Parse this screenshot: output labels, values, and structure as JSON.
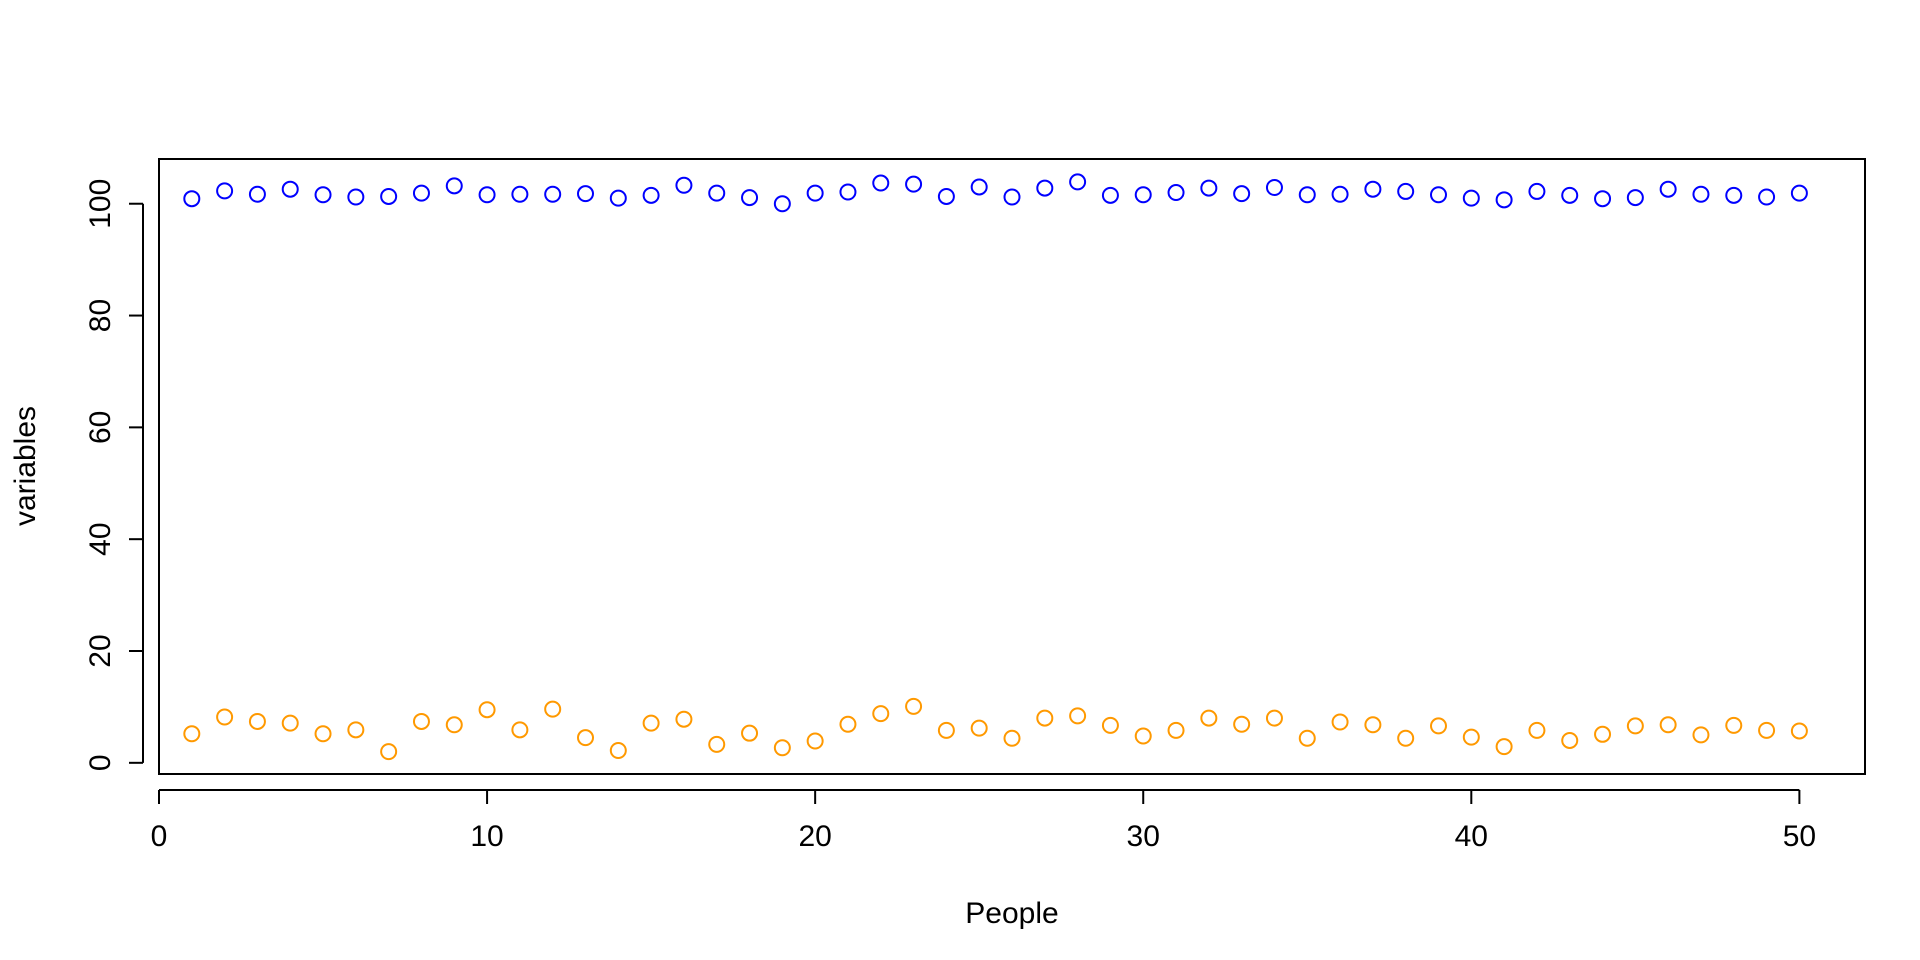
{
  "chart_data": {
    "type": "scatter",
    "title": "",
    "xlabel": "People",
    "ylabel": "variables",
    "xlim": [
      0,
      52
    ],
    "ylim": [
      -2,
      108
    ],
    "x_ticks": [
      0,
      10,
      20,
      30,
      40,
      50
    ],
    "y_ticks": [
      0,
      20,
      40,
      60,
      80,
      100
    ],
    "grid": false,
    "legend": "none",
    "marker": "open-circle",
    "series": [
      {
        "color": "#0000ff",
        "x": [
          1,
          2,
          3,
          4,
          5,
          6,
          7,
          8,
          9,
          10,
          11,
          12,
          13,
          14,
          15,
          16,
          17,
          18,
          19,
          20,
          21,
          22,
          23,
          24,
          25,
          26,
          27,
          28,
          29,
          30,
          31,
          32,
          33,
          34,
          35,
          36,
          37,
          38,
          39,
          40,
          41,
          42,
          43,
          44,
          45,
          46,
          47,
          48,
          49,
          50
        ],
        "y": [
          100.9,
          102.3,
          101.7,
          102.6,
          101.6,
          101.2,
          101.3,
          101.9,
          103.2,
          101.6,
          101.7,
          101.7,
          101.8,
          101.0,
          101.5,
          103.3,
          101.9,
          101.1,
          100.0,
          101.9,
          102.1,
          103.7,
          103.5,
          101.3,
          103.0,
          101.2,
          102.8,
          103.9,
          101.5,
          101.6,
          102.0,
          102.8,
          101.8,
          102.9,
          101.6,
          101.7,
          102.6,
          102.2,
          101.6,
          101.0,
          100.7,
          102.2,
          101.5,
          100.9,
          101.1,
          102.6,
          101.7,
          101.5,
          101.2,
          101.9
        ]
      },
      {
        "color": "#ff9900",
        "x": [
          1,
          2,
          3,
          4,
          5,
          6,
          7,
          8,
          9,
          10,
          11,
          12,
          13,
          14,
          15,
          16,
          17,
          18,
          19,
          20,
          21,
          22,
          23,
          24,
          25,
          26,
          27,
          28,
          29,
          30,
          31,
          32,
          33,
          34,
          35,
          36,
          37,
          38,
          39,
          40,
          41,
          42,
          43,
          44,
          45,
          46,
          47,
          48,
          49,
          50
        ],
        "y": [
          5.2,
          8.2,
          7.4,
          7.1,
          5.2,
          5.9,
          2.0,
          7.4,
          6.8,
          9.5,
          5.9,
          9.6,
          4.5,
          2.2,
          7.1,
          7.8,
          3.3,
          5.3,
          2.7,
          3.9,
          6.9,
          8.8,
          10.1,
          5.8,
          6.2,
          4.4,
          8.0,
          8.4,
          6.7,
          4.8,
          5.8,
          8.0,
          6.9,
          8.0,
          4.4,
          7.3,
          6.8,
          4.4,
          6.6,
          4.6,
          2.9,
          5.8,
          4.0,
          5.1,
          6.6,
          6.8,
          5.0,
          6.7,
          5.8,
          5.7
        ]
      }
    ]
  }
}
